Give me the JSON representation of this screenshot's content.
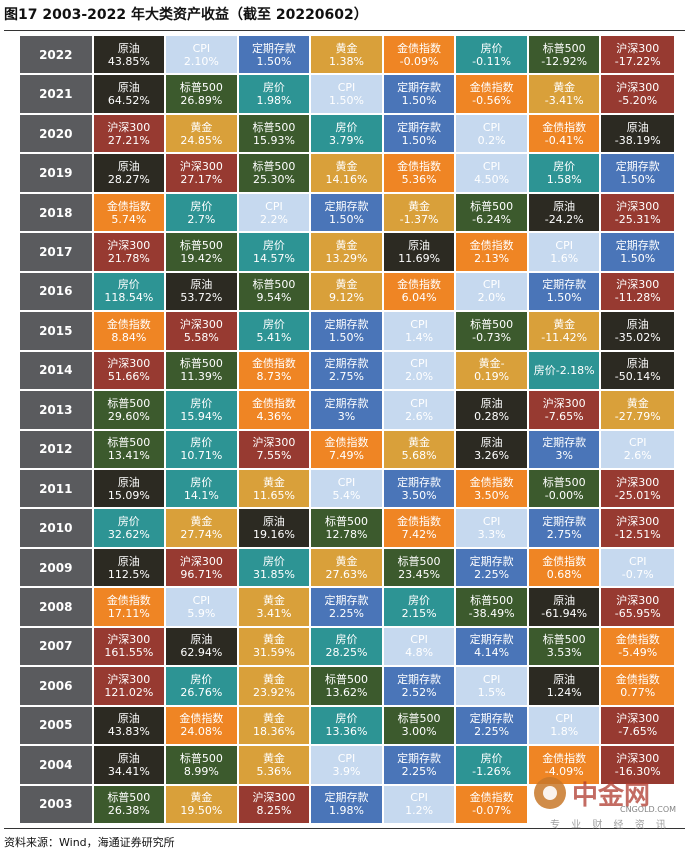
{
  "title": "图17 2003-2022 年大类资产收益（截至 20220602）",
  "footer": "资料来源：Wind，海通证券研究所",
  "watermark": {
    "main": "中金网",
    "site": "CNGOLD.COM",
    "sub": "专 业 财 经 资 讯"
  },
  "colors": {
    "原油": "#2c2a22",
    "CPI": "#c6d9ef",
    "定期存款": "#4a75b8",
    "黄金": "#d9a03a",
    "金债指数": "#ef8524",
    "房价": "#2d9494",
    "标普500": "#3c5a2d",
    "沪深300": "#973a31"
  },
  "chart_data": {
    "type": "table",
    "title": "图17 2003-2022 年大类资产收益（截至 20220602）",
    "rows": [
      {
        "year": "2022",
        "cells": [
          [
            "原油",
            "43.85%"
          ],
          [
            "CPI",
            "2.10%"
          ],
          [
            "定期存款",
            "1.50%"
          ],
          [
            "黄金",
            "1.38%"
          ],
          [
            "金债指数",
            "-0.09%"
          ],
          [
            "房价",
            "-0.11%"
          ],
          [
            "标普500",
            "-12.92%"
          ],
          [
            "沪深300",
            "-17.22%"
          ]
        ]
      },
      {
        "year": "2021",
        "cells": [
          [
            "原油",
            "64.52%"
          ],
          [
            "标普500",
            "26.89%"
          ],
          [
            "房价",
            "1.98%"
          ],
          [
            "CPI",
            "1.50%"
          ],
          [
            "定期存款",
            "1.50%"
          ],
          [
            "金债指数",
            "-0.56%"
          ],
          [
            "黄金",
            "-3.41%"
          ],
          [
            "沪深300",
            "-5.20%"
          ]
        ]
      },
      {
        "year": "2020",
        "cells": [
          [
            "沪深300",
            "27.21%"
          ],
          [
            "黄金",
            "24.85%"
          ],
          [
            "标普500",
            "15.93%"
          ],
          [
            "房价",
            "3.79%"
          ],
          [
            "定期存款",
            "1.50%"
          ],
          [
            "CPI",
            "0.2%"
          ],
          [
            "金债指数",
            "-0.41%"
          ],
          [
            "原油",
            "-38.19%"
          ]
        ]
      },
      {
        "year": "2019",
        "cells": [
          [
            "原油",
            "28.27%"
          ],
          [
            "沪深300",
            "27.17%"
          ],
          [
            "标普500",
            "25.30%"
          ],
          [
            "黄金",
            "14.16%"
          ],
          [
            "金债指数",
            "5.36%"
          ],
          [
            "CPI",
            "4.50%"
          ],
          [
            "房价",
            "1.58%"
          ],
          [
            "定期存款",
            "1.50%"
          ]
        ]
      },
      {
        "year": "2018",
        "cells": [
          [
            "金债指数",
            "5.74%"
          ],
          [
            "房价",
            "2.7%"
          ],
          [
            "CPI",
            "2.2%"
          ],
          [
            "定期存款",
            "1.50%"
          ],
          [
            "黄金",
            "-1.37%"
          ],
          [
            "标普500",
            "-6.24%"
          ],
          [
            "原油",
            "-24.2%"
          ],
          [
            "沪深300",
            "-25.31%"
          ]
        ]
      },
      {
        "year": "2017",
        "cells": [
          [
            "沪深300",
            "21.78%"
          ],
          [
            "标普500",
            "19.42%"
          ],
          [
            "房价",
            "14.57%"
          ],
          [
            "黄金",
            "13.29%"
          ],
          [
            "原油",
            "11.69%"
          ],
          [
            "金债指数",
            "2.13%"
          ],
          [
            "CPI",
            "1.6%"
          ],
          [
            "定期存款",
            "1.50%"
          ]
        ]
      },
      {
        "year": "2016",
        "cells": [
          [
            "房价",
            "118.54%"
          ],
          [
            "原油",
            "53.72%"
          ],
          [
            "标普500",
            "9.54%"
          ],
          [
            "黄金",
            "9.12%"
          ],
          [
            "金债指数",
            "6.04%"
          ],
          [
            "CPI",
            "2.0%"
          ],
          [
            "定期存款",
            "1.50%"
          ],
          [
            "沪深300",
            "-11.28%"
          ]
        ]
      },
      {
        "year": "2015",
        "cells": [
          [
            "金债指数",
            "8.84%"
          ],
          [
            "沪深300",
            "5.58%"
          ],
          [
            "房价",
            "5.41%"
          ],
          [
            "定期存款",
            "1.50%"
          ],
          [
            "CPI",
            "1.4%"
          ],
          [
            "标普500",
            "-0.73%"
          ],
          [
            "黄金",
            "-11.42%"
          ],
          [
            "原油",
            "-35.02%"
          ]
        ]
      },
      {
        "year": "2014",
        "cells": [
          [
            "沪深300",
            "51.66%"
          ],
          [
            "标普500",
            "11.39%"
          ],
          [
            "金债指数",
            "8.73%"
          ],
          [
            "定期存款",
            "2.75%"
          ],
          [
            "CPI",
            "2.0%"
          ],
          [
            "黄金-",
            "0.19%"
          ],
          [
            "房价-2.18%",
            ""
          ],
          [
            "原油",
            "-50.14%"
          ]
        ]
      },
      {
        "year": "2013",
        "cells": [
          [
            "标普500",
            "29.60%"
          ],
          [
            "房价",
            "15.94%"
          ],
          [
            "金债指数",
            "4.36%"
          ],
          [
            "定期存款",
            "3%"
          ],
          [
            "CPI",
            "2.6%"
          ],
          [
            "原油",
            "0.28%"
          ],
          [
            "沪深300",
            "-7.65%"
          ],
          [
            "黄金",
            "-27.79%"
          ]
        ]
      },
      {
        "year": "2012",
        "cells": [
          [
            "标普500",
            "13.41%"
          ],
          [
            "房价",
            "10.71%"
          ],
          [
            "沪深300",
            "7.55%"
          ],
          [
            "金债指数",
            "7.49%"
          ],
          [
            "黄金",
            "5.68%"
          ],
          [
            "原油",
            "3.26%"
          ],
          [
            "定期存款",
            "3%"
          ],
          [
            "CPI",
            "2.6%"
          ]
        ]
      },
      {
        "year": "2011",
        "cells": [
          [
            "原油",
            "15.09%"
          ],
          [
            "房价",
            "14.1%"
          ],
          [
            "黄金",
            "11.65%"
          ],
          [
            "CPI",
            "5.4%"
          ],
          [
            "定期存款",
            "3.50%"
          ],
          [
            "金债指数",
            "3.50%"
          ],
          [
            "标普500",
            "-0.00%"
          ],
          [
            "沪深300",
            "-25.01%"
          ]
        ]
      },
      {
        "year": "2010",
        "cells": [
          [
            "房价",
            "32.62%"
          ],
          [
            "黄金",
            "27.74%"
          ],
          [
            "原油",
            "19.16%"
          ],
          [
            "标普500",
            "12.78%"
          ],
          [
            "金债指数",
            "7.42%"
          ],
          [
            "CPI",
            "3.3%"
          ],
          [
            "定期存款",
            "2.75%"
          ],
          [
            "沪深300",
            "-12.51%"
          ]
        ]
      },
      {
        "year": "2009",
        "cells": [
          [
            "原油",
            "112.5%"
          ],
          [
            "沪深300",
            "96.71%"
          ],
          [
            "房价",
            "31.85%"
          ],
          [
            "黄金",
            "27.63%"
          ],
          [
            "标普500",
            "23.45%"
          ],
          [
            "定期存款",
            "2.25%"
          ],
          [
            "金债指数",
            "0.68%"
          ],
          [
            "CPI",
            "-0.7%"
          ]
        ]
      },
      {
        "year": "2008",
        "cells": [
          [
            "金债指数",
            "17.11%"
          ],
          [
            "CPI",
            "5.9%"
          ],
          [
            "黄金",
            "3.41%"
          ],
          [
            "定期存款",
            "2.25%"
          ],
          [
            "房价",
            "2.15%"
          ],
          [
            "标普500",
            "-38.49%"
          ],
          [
            "原油",
            "-61.94%"
          ],
          [
            "沪深300",
            "-65.95%"
          ]
        ]
      },
      {
        "year": "2007",
        "cells": [
          [
            "沪深300",
            "161.55%"
          ],
          [
            "原油",
            "62.94%"
          ],
          [
            "黄金",
            "31.59%"
          ],
          [
            "房价",
            "28.25%"
          ],
          [
            "CPI",
            "4.8%"
          ],
          [
            "定期存款",
            "4.14%"
          ],
          [
            "标普500",
            "3.53%"
          ],
          [
            "金债指数",
            "-5.49%"
          ]
        ]
      },
      {
        "year": "2006",
        "cells": [
          [
            "沪深300",
            "121.02%"
          ],
          [
            "房价",
            "26.76%"
          ],
          [
            "黄金",
            "23.92%"
          ],
          [
            "标普500",
            "13.62%"
          ],
          [
            "定期存款",
            "2.52%"
          ],
          [
            "CPI",
            "1.5%"
          ],
          [
            "原油",
            "1.24%"
          ],
          [
            "金债指数",
            "0.77%"
          ]
        ]
      },
      {
        "year": "2005",
        "cells": [
          [
            "原油",
            "43.83%"
          ],
          [
            "金债指数",
            "24.08%"
          ],
          [
            "黄金",
            "18.36%"
          ],
          [
            "房价",
            "13.36%"
          ],
          [
            "标普500",
            "3.00%"
          ],
          [
            "定期存款",
            "2.25%"
          ],
          [
            "CPI",
            "1.8%"
          ],
          [
            "沪深300",
            "-7.65%"
          ]
        ]
      },
      {
        "year": "2004",
        "cells": [
          [
            "原油",
            "34.41%"
          ],
          [
            "标普500",
            "8.99%"
          ],
          [
            "黄金",
            "5.36%"
          ],
          [
            "CPI",
            "3.9%"
          ],
          [
            "定期存款",
            "2.25%"
          ],
          [
            "房价",
            "-1.26%"
          ],
          [
            "金债指数",
            "-4.09%"
          ],
          [
            "沪深300",
            "-16.30%"
          ]
        ]
      },
      {
        "year": "2003",
        "cells": [
          [
            "标普500",
            "26.38%"
          ],
          [
            "黄金",
            "19.50%"
          ],
          [
            "沪深300",
            "8.25%"
          ],
          [
            "定期存款",
            "1.98%"
          ],
          [
            "CPI",
            "1.2%"
          ],
          [
            "金债指数",
            "-0.07%"
          ],
          [
            "",
            ""
          ],
          [
            "",
            ""
          ]
        ]
      }
    ]
  }
}
